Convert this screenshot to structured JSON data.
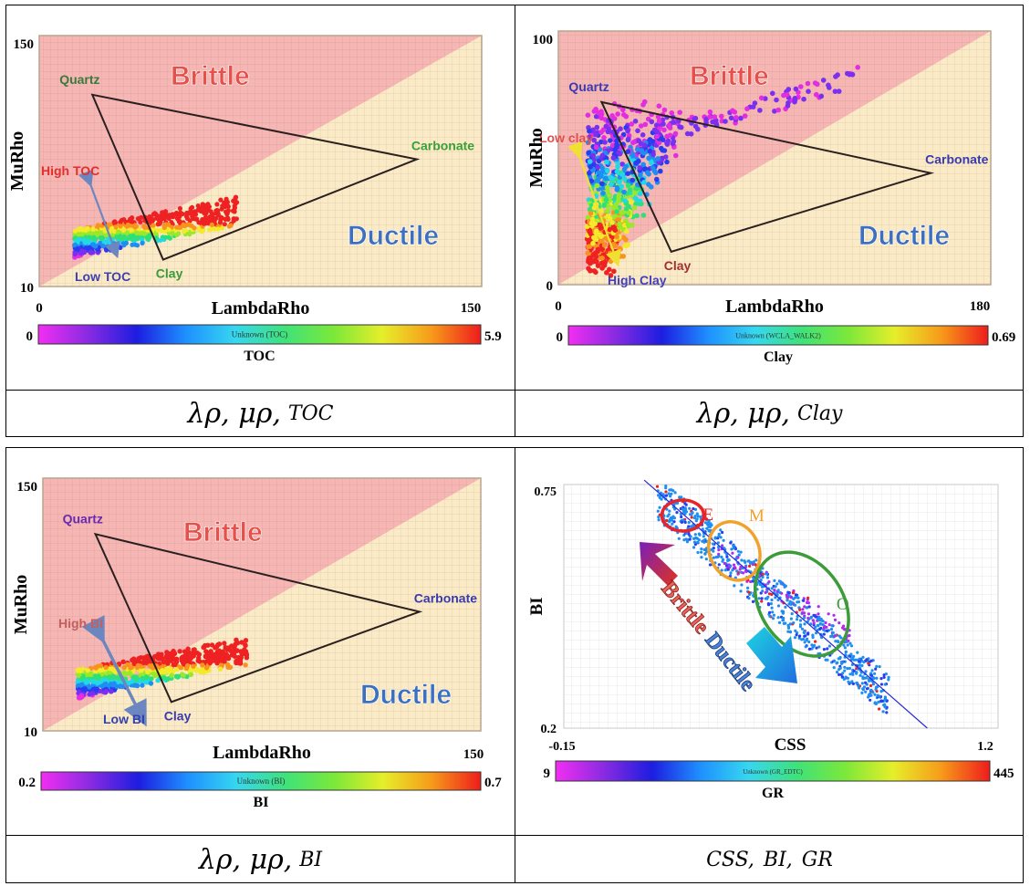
{
  "chart_data": [
    {
      "type": "scatter",
      "xlabel": "LambdaRho",
      "ylabel": "MuRho",
      "xlim": [
        0,
        150
      ],
      "ylim": [
        10,
        150
      ],
      "x_tick_labels": [
        "0",
        "150"
      ],
      "y_tick_labels": [
        "10",
        "150"
      ],
      "regions": [
        "Brittle",
        "Ductile"
      ],
      "minerals": [
        {
          "name": "Quartz",
          "x": 18,
          "y": 117
        },
        {
          "name": "Carbonate",
          "x": 128,
          "y": 81
        },
        {
          "name": "Clay",
          "x": 42,
          "y": 25
        }
      ],
      "annotation_high": "High TOC",
      "annotation_low": "Low TOC",
      "colorbar": {
        "label": "TOC",
        "min": "0",
        "max": "5.9",
        "center_text": "Unknown (TOC)"
      },
      "caption": {
        "greek": "λρ, μρ,",
        "var": "TOC"
      }
    },
    {
      "type": "scatter",
      "xlabel": "LambdaRho",
      "ylabel": "MuRho",
      "xlim": [
        0,
        180
      ],
      "ylim": [
        0,
        100
      ],
      "x_tick_labels": [
        "0",
        "180"
      ],
      "y_tick_labels": [
        "0",
        "100"
      ],
      "regions": [
        "Brittle",
        "Ductile"
      ],
      "minerals": [
        {
          "name": "Quartz",
          "x": 18,
          "y": 72
        },
        {
          "name": "Carbonate",
          "x": 155,
          "y": 44
        },
        {
          "name": "Clay",
          "x": 47,
          "y": 13
        }
      ],
      "annotation_high": "Low clay",
      "annotation_low": "High Clay",
      "colorbar": {
        "label": "Clay",
        "min": "0",
        "max": "0.69",
        "center_text": "Unknown (WCLA_WALK2)"
      },
      "caption": {
        "greek": "λρ, μρ,",
        "var": "Clay"
      }
    },
    {
      "type": "scatter",
      "xlabel": "LambdaRho",
      "ylabel": "MuRho",
      "xlim": [
        0,
        150
      ],
      "ylim": [
        10,
        150
      ],
      "x_tick_labels": [
        "150"
      ],
      "y_tick_labels": [
        "10",
        "150"
      ],
      "regions": [
        "Brittle",
        "Ductile"
      ],
      "minerals": [
        {
          "name": "Quartz",
          "x": 18,
          "y": 119
        },
        {
          "name": "Carbonate",
          "x": 129,
          "y": 76
        },
        {
          "name": "Clay",
          "x": 44,
          "y": 26
        }
      ],
      "annotation_high": "High BI",
      "annotation_low": "Low BI",
      "colorbar": {
        "label": "BI",
        "min": "0.2",
        "max": "0.7",
        "center_text": "Unknown (BI)"
      },
      "caption": {
        "greek": "λρ, μρ,",
        "var": "BI"
      }
    },
    {
      "type": "scatter",
      "xlabel": "CSS",
      "ylabel": "BI",
      "xlim": [
        -0.15,
        1.2
      ],
      "ylim": [
        0.2,
        0.75
      ],
      "x_tick_labels": [
        "-0.15",
        "1.2"
      ],
      "y_tick_labels": [
        "0.2",
        "0.75"
      ],
      "trend_line": [
        [
          0.1,
          0.76
        ],
        [
          0.98,
          0.2
        ]
      ],
      "clusters": [
        {
          "name": "E",
          "x": 0.22,
          "y": 0.68,
          "color": "#e8242a"
        },
        {
          "name": "M",
          "x": 0.38,
          "y": 0.6,
          "color": "#f2a12a"
        },
        {
          "name": "O",
          "x": 0.59,
          "y": 0.48,
          "color": "#3d9c3a"
        }
      ],
      "arrows": [
        "Brittle",
        "Ductile"
      ],
      "colorbar": {
        "label": "GR",
        "min": "9",
        "max": "445",
        "center_text": "Unknown (GR_EDTC)"
      },
      "caption": {
        "var1": "CSS,",
        "var2": "BI,",
        "var3": "GR"
      }
    }
  ],
  "colors": {
    "brittle_fill": "#f6b6b4",
    "ductile_fill": "#faebc6",
    "brittle_text": "#e5514a",
    "ductile_text": "#3b6fc2"
  }
}
